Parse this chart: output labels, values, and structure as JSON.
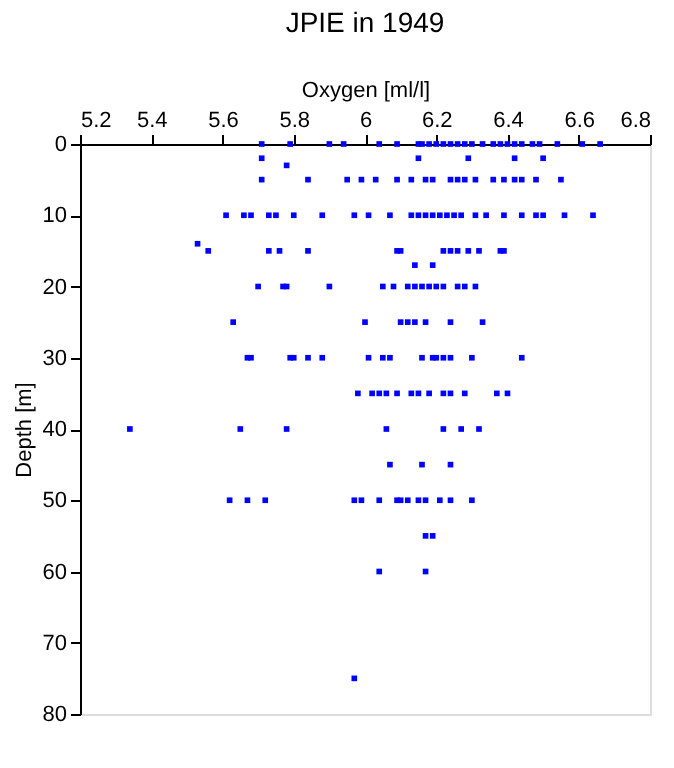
{
  "chart_data": {
    "type": "scatter",
    "title": "JPIE in 1949",
    "xlabel": "Oxygen [ml/l]",
    "ylabel": "Depth [m]",
    "x": [
      5.71,
      5.79,
      5.9,
      5.94,
      6.04,
      6.09,
      6.15,
      6.16,
      6.18,
      6.2,
      6.22,
      6.24,
      6.26,
      6.28,
      6.3,
      6.33,
      6.36,
      6.38,
      6.4,
      6.42,
      6.44,
      6.47,
      6.49,
      6.54,
      6.61,
      6.66,
      5.71,
      6.15,
      6.29,
      6.42,
      6.5,
      5.78,
      5.71,
      5.84,
      5.95,
      5.99,
      6.03,
      6.09,
      6.13,
      6.17,
      6.19,
      6.24,
      6.26,
      6.28,
      6.31,
      6.36,
      6.39,
      6.42,
      6.44,
      6.48,
      6.55,
      5.61,
      5.66,
      5.68,
      5.73,
      5.75,
      5.8,
      5.88,
      5.97,
      6.01,
      6.07,
      6.13,
      6.15,
      6.17,
      6.19,
      6.21,
      6.23,
      6.25,
      6.27,
      6.31,
      6.34,
      6.39,
      6.44,
      6.48,
      6.5,
      6.56,
      6.64,
      5.53,
      5.56,
      5.73,
      5.76,
      5.84,
      6.09,
      6.1,
      6.22,
      6.24,
      6.26,
      6.29,
      6.32,
      6.38,
      6.39,
      6.14,
      6.19,
      5.7,
      5.77,
      5.78,
      5.9,
      6.05,
      6.08,
      6.12,
      6.14,
      6.16,
      6.18,
      6.2,
      6.22,
      6.26,
      6.28,
      6.31,
      5.63,
      6.0,
      6.1,
      6.12,
      6.14,
      6.17,
      6.24,
      6.33,
      5.67,
      5.68,
      5.79,
      5.8,
      5.84,
      5.88,
      6.01,
      6.05,
      6.07,
      6.16,
      6.19,
      6.2,
      6.22,
      6.24,
      6.3,
      6.44,
      5.98,
      6.02,
      6.04,
      6.06,
      6.09,
      6.13,
      6.15,
      6.18,
      6.22,
      6.24,
      6.28,
      6.37,
      6.4,
      5.34,
      5.65,
      5.78,
      6.06,
      6.22,
      6.27,
      6.32,
      6.07,
      6.16,
      6.24,
      5.62,
      5.67,
      5.72,
      5.97,
      5.99,
      6.04,
      6.09,
      6.1,
      6.12,
      6.15,
      6.17,
      6.21,
      6.24,
      6.3,
      6.17,
      6.19,
      6.04,
      6.17,
      5.97
    ],
    "values": [
      0,
      0,
      0,
      0,
      0,
      0,
      0,
      0,
      0,
      0,
      0,
      0,
      0,
      0,
      0,
      0,
      0,
      0,
      0,
      0,
      0,
      0,
      0,
      0,
      0,
      0,
      2,
      2,
      2,
      2,
      2,
      3,
      5,
      5,
      5,
      5,
      5,
      5,
      5,
      5,
      5,
      5,
      5,
      5,
      5,
      5,
      5,
      5,
      5,
      5,
      5,
      10,
      10,
      10,
      10,
      10,
      10,
      10,
      10,
      10,
      10,
      10,
      10,
      10,
      10,
      10,
      10,
      10,
      10,
      10,
      10,
      10,
      10,
      10,
      10,
      10,
      10,
      14,
      15,
      15,
      15,
      15,
      15,
      15,
      15,
      15,
      15,
      15,
      15,
      15,
      15,
      17,
      17,
      20,
      20,
      20,
      20,
      20,
      20,
      20,
      20,
      20,
      20,
      20,
      20,
      20,
      20,
      20,
      25,
      25,
      25,
      25,
      25,
      25,
      25,
      25,
      30,
      30,
      30,
      30,
      30,
      30,
      30,
      30,
      30,
      30,
      30,
      30,
      30,
      30,
      30,
      30,
      35,
      35,
      35,
      35,
      35,
      35,
      35,
      35,
      35,
      35,
      35,
      35,
      35,
      40,
      40,
      40,
      40,
      40,
      40,
      40,
      45,
      45,
      45,
      50,
      50,
      50,
      50,
      50,
      50,
      50,
      50,
      50,
      50,
      50,
      50,
      50,
      50,
      55,
      55,
      60,
      60,
      75
    ],
    "color": "#0000ff",
    "marker": "square",
    "grid": false,
    "xlim": [
      5.2,
      6.8
    ],
    "xticks": [
      5.2,
      5.4,
      5.6,
      5.8,
      6,
      6.2,
      6.4,
      6.6,
      6.8
    ],
    "ylim": [
      80,
      0
    ],
    "yticks": [
      0,
      10,
      20,
      30,
      40,
      50,
      60,
      70,
      80
    ]
  }
}
